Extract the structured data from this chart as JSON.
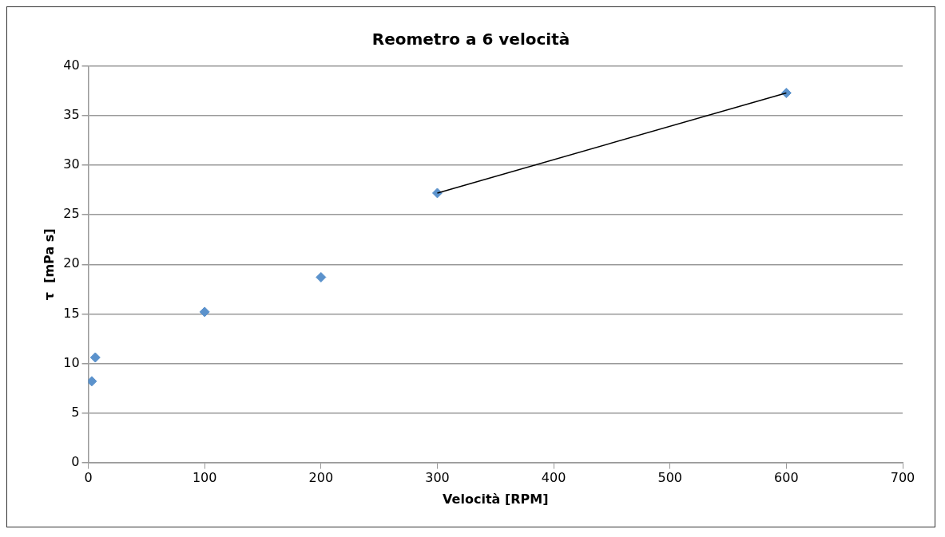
{
  "chart_data": {
    "type": "scatter",
    "title": "Reometro a 6 velocità",
    "xlabel": "Velocità [RPM]",
    "ylabel": "τ  [mPa s]",
    "series": [
      {
        "color": "#5b92cc",
        "x": [
          3,
          6,
          100,
          200,
          300,
          600
        ],
        "values": [
          8.2,
          10.6,
          15.2,
          18.7,
          27.2,
          37.3
        ],
        "marker": "diamond"
      },
      {
        "type": "line",
        "color": "#000000",
        "x": [
          300,
          600
        ],
        "values": [
          27.2,
          37.3
        ],
        "marker": "none",
        "line_style": "solid"
      }
    ],
    "xlim": [
      0,
      700
    ],
    "xticks": [
      0,
      100,
      200,
      300,
      400,
      500,
      600,
      700
    ],
    "ylim": [
      0,
      40
    ],
    "yticks": [
      0,
      5,
      10,
      15,
      20,
      25,
      30,
      35,
      40
    ],
    "grid": "y",
    "legend": false
  }
}
